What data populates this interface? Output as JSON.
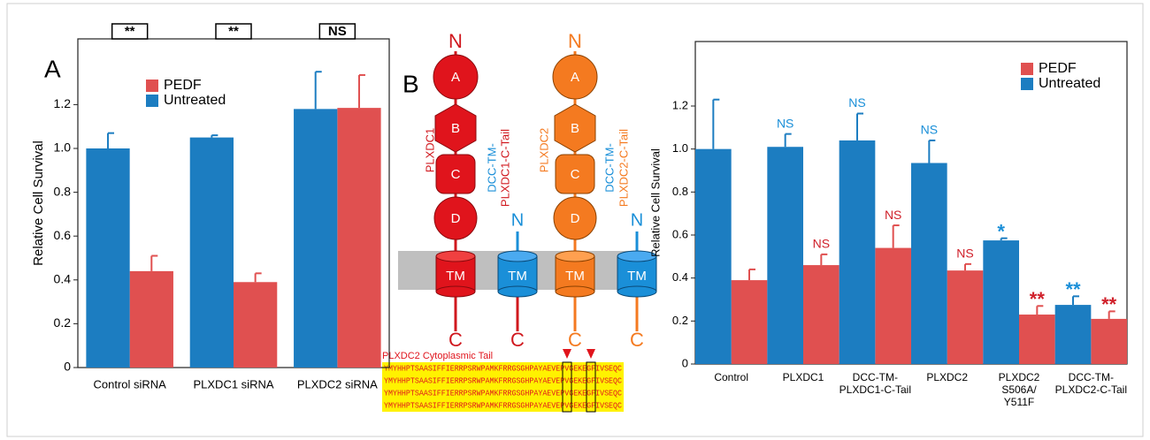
{
  "chart_data": [
    {
      "type": "bar",
      "panel_label": "A",
      "y_label": "Relative Cell Survival",
      "categories": [
        "Control siRNA",
        "PLXDC1 siRNA",
        "PLXDC2 siRNA"
      ],
      "series": [
        {
          "name": "PEDF",
          "color": "#e05050",
          "values": [
            0.44,
            0.39,
            1.185
          ],
          "errors": [
            0.07,
            0.04,
            0.15
          ]
        },
        {
          "name": "Untreated",
          "color": "#1c7dc1",
          "values": [
            1.0,
            1.05,
            1.18
          ],
          "errors": [
            0.07,
            0.01,
            0.17
          ]
        }
      ],
      "significance": [
        "**",
        "**",
        "NS"
      ],
      "ylim": [
        0,
        1.5
      ],
      "yticks": [
        0,
        0.2,
        0.4,
        0.6,
        0.8,
        {
          "value": 1,
          "label": "1.0"
        },
        1.2
      ],
      "legend": "top-left"
    },
    {
      "type": "bar",
      "y_label": "Relative Cell Survival",
      "categories": [
        [
          "Control"
        ],
        [
          "PLXDC1"
        ],
        [
          "DCC-TM-",
          "PLXDC1-C-Tail"
        ],
        [
          "PLXDC2"
        ],
        [
          "PLXDC2",
          "S506A/",
          "Y511F"
        ],
        [
          "DCC-TM-",
          "PLXDC2-C-Tail"
        ]
      ],
      "series": [
        {
          "name": "PEDF",
          "color": "#e05050",
          "values": [
            0.39,
            0.46,
            0.54,
            0.435,
            0.23,
            0.21
          ],
          "errors": [
            0.05,
            0.05,
            0.105,
            0.03,
            0.04,
            0.035
          ],
          "annotations": [
            null,
            "NS",
            "NS",
            "NS",
            "**",
            "**"
          ],
          "annotation_color": "#d0202a"
        },
        {
          "name": "Untreated",
          "color": "#1c7dc1",
          "values": [
            1.0,
            1.01,
            1.04,
            0.935,
            0.575,
            0.275
          ],
          "errors": [
            0.23,
            0.06,
            0.125,
            0.105,
            0.01,
            0.04
          ],
          "annotations": [
            null,
            "NS",
            "NS",
            "NS",
            "*",
            "**"
          ],
          "annotation_color": "#1a8fd8"
        }
      ],
      "ylim": [
        0,
        1.5
      ],
      "yticks": [
        0,
        0.2,
        0.4,
        0.6,
        0.8,
        {
          "value": 1,
          "label": "1.0"
        },
        1.2
      ],
      "legend": "top-right"
    }
  ],
  "diagram": {
    "label": "B",
    "plxdc1": {
      "name": "PLXDC1",
      "n": "N",
      "domains": [
        "A",
        "B",
        "C",
        "D"
      ],
      "tm": "TM",
      "c": "C"
    },
    "dcc1": {
      "name": [
        "DCC-TM-",
        "PLXDC1-C-Tail"
      ],
      "n": "N",
      "tm": "TM",
      "c": "C"
    },
    "plxdc2": {
      "name": "PLXDC2",
      "n": "N",
      "domains": [
        "A",
        "B",
        "C",
        "D"
      ],
      "tm": "TM",
      "c": "C"
    },
    "dcc2": {
      "name": [
        "DCC-TM-",
        "PLXDC2-C-Tail"
      ],
      "n": "N",
      "tm": "TM",
      "c": "C"
    },
    "tail_title": "PLXDC2 Cytoplasmic Tail",
    "sequences": [
      "YMYHHPTSAASIFFIERRPSRWPAMKFRRGSGHPAYAEVEPVGEKEGFIVSEQC",
      "YMYHHPTSAASIFFIERRPSRWPAMKFRRGSGHPAYAEVEPVGEKEGFIVSEQC",
      "YMYHHPTSAASIFFIERRPSRWPAMKFRRGSGHPAYAEVEPVGEKEGFIVSEQC",
      "YMYHHPTSAASIFFIERRPSRWPAMKFRRGSGHPAYAEVEPVGEKEGFIVSEQC"
    ]
  }
}
